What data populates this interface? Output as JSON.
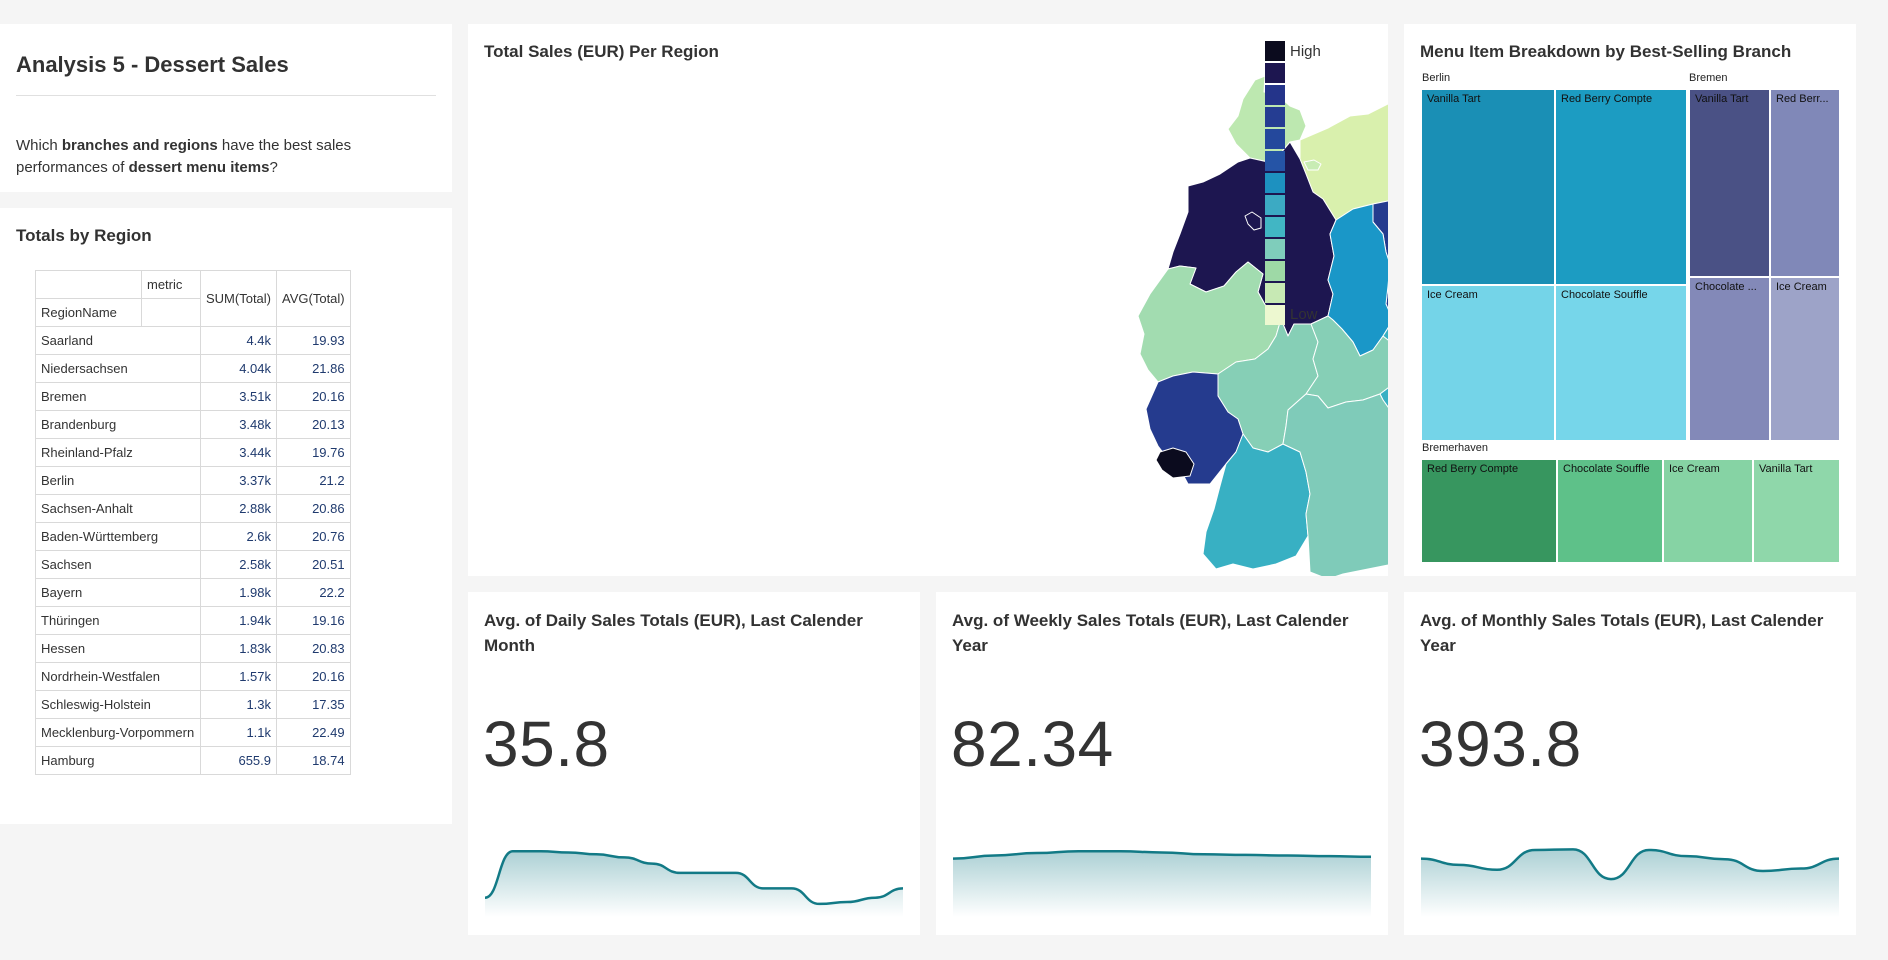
{
  "intro": {
    "title": "Analysis 5 - Dessert Sales",
    "q_prefix": "Which ",
    "q_bold1": "branches and regions",
    "q_mid": " have the best sales performances of ",
    "q_bold2": "dessert menu items",
    "q_suffix": "?"
  },
  "totals": {
    "title": "Totals by Region",
    "header_metric": "metric",
    "header_region": "RegionName",
    "header_sum": "SUM(Total)",
    "header_avg": "AVG(Total)",
    "rows": [
      {
        "region": "Saarland",
        "sum": "4.4k",
        "avg": "19.93"
      },
      {
        "region": "Niedersachsen",
        "sum": "4.04k",
        "avg": "21.86"
      },
      {
        "region": "Bremen",
        "sum": "3.51k",
        "avg": "20.16"
      },
      {
        "region": "Brandenburg",
        "sum": "3.48k",
        "avg": "20.13"
      },
      {
        "region": "Rheinland-Pfalz",
        "sum": "3.44k",
        "avg": "19.76"
      },
      {
        "region": "Berlin",
        "sum": "3.37k",
        "avg": "21.2"
      },
      {
        "region": "Sachsen-Anhalt",
        "sum": "2.88k",
        "avg": "20.86"
      },
      {
        "region": "Baden-Württemberg",
        "sum": "2.6k",
        "avg": "20.76"
      },
      {
        "region": "Sachsen",
        "sum": "2.58k",
        "avg": "20.51"
      },
      {
        "region": "Bayern",
        "sum": "1.98k",
        "avg": "22.2"
      },
      {
        "region": "Thüringen",
        "sum": "1.94k",
        "avg": "19.16"
      },
      {
        "region": "Hessen",
        "sum": "1.83k",
        "avg": "20.83"
      },
      {
        "region": "Nordrhein-Westfalen",
        "sum": "1.57k",
        "avg": "20.16"
      },
      {
        "region": "Schleswig-Holstein",
        "sum": "1.3k",
        "avg": "17.35"
      },
      {
        "region": "Mecklenburg-Vorpommern",
        "sum": "1.1k",
        "avg": "22.49"
      },
      {
        "region": "Hamburg",
        "sum": "655.9",
        "avg": "18.74"
      }
    ]
  },
  "map": {
    "title": "Total Sales (EUR) Per Region",
    "legend_high": "High",
    "legend_low": "Low",
    "legend_colors": [
      "#0b0b1e",
      "#1d1650",
      "#24348a",
      "#253d92",
      "#24489c",
      "#2554a6",
      "#1d91c0",
      "#3caac3",
      "#41b6c4",
      "#7fcdbb",
      "#9ed9a6",
      "#c7e9b4",
      "#edf8d0"
    ],
    "region_colors": {
      "Saarland": "#0b0b1e",
      "Niedersachsen": "#1d1650",
      "Bremen": "#1d1650",
      "Brandenburg": "#253b8e",
      "Rheinland-Pfalz": "#253b8e",
      "Berlin": "#253b8e",
      "Sachsen-Anhalt": "#1a97c8",
      "Baden-Württemberg": "#38b0c3",
      "Sachsen": "#38b0c3",
      "Bayern": "#7fcbb9",
      "Thüringen": "#86cfb6",
      "Hessen": "#86cfb6",
      "Nordrhein-Westfalen": "#a2dcb0",
      "Schleswig-Holstein": "#bde8b0",
      "Mecklenburg-Vorpommern": "#d9f0ad",
      "Hamburg": "#c8ecb4"
    }
  },
  "treemap": {
    "title": "Menu Item Breakdown by Best-Selling Branch",
    "groups": [
      {
        "name": "Berlin",
        "cells": [
          {
            "label": "Vanilla Tart",
            "color": "#1a8fb5"
          },
          {
            "label": "Red Berry Compte",
            "color": "#1c9cc2"
          },
          {
            "label": "Ice Cream",
            "color": "#74d4e8"
          },
          {
            "label": "Chocolate Souffle",
            "color": "#76d6ea"
          }
        ]
      },
      {
        "name": "Bremen",
        "cells": [
          {
            "label": "Vanilla Tart",
            "color": "#4a5185"
          },
          {
            "label": "Red Berr...",
            "color": "#8088b8"
          },
          {
            "label": "Chocolate ...",
            "color": "#8389b8"
          },
          {
            "label": "Ice Cream",
            "color": "#9da3c8"
          }
        ]
      },
      {
        "name": "Bremerhaven",
        "cells": [
          {
            "label": "Red Berry Compte",
            "color": "#37965f"
          },
          {
            "label": "Chocolate Souffle",
            "color": "#5ec189"
          },
          {
            "label": "Ice Cream",
            "color": "#86d3a4"
          },
          {
            "label": "Vanilla Tart",
            "color": "#8fd7aa"
          }
        ]
      }
    ]
  },
  "kpis": [
    {
      "title": "Avg. of Daily Sales Totals (EUR), Last Calender Month",
      "value": "35.8",
      "trend": [
        0.15,
        0.9,
        0.9,
        0.88,
        0.85,
        0.8,
        0.7,
        0.55,
        0.55,
        0.55,
        0.3,
        0.3,
        0.05,
        0.08,
        0.15,
        0.3
      ]
    },
    {
      "title": "Avg. of Weekly Sales Totals (EUR), Last Calender Year",
      "value": "82.34",
      "trend": [
        0.78,
        0.83,
        0.87,
        0.9,
        0.9,
        0.88,
        0.85,
        0.84,
        0.83,
        0.82,
        0.81
      ]
    },
    {
      "title": "Avg. of Monthly Sales Totals (EUR), Last Calender Year",
      "value": "393.8",
      "trend": [
        0.78,
        0.68,
        0.6,
        0.92,
        0.93,
        0.45,
        0.92,
        0.82,
        0.77,
        0.58,
        0.62,
        0.78
      ]
    }
  ],
  "colors": {
    "trend_line": "#127a86",
    "trend_fill": "#127a86"
  }
}
